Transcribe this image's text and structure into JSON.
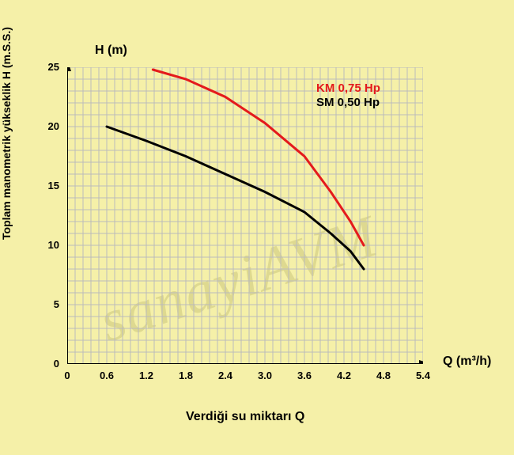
{
  "chart": {
    "type": "line",
    "background_color": "#f5f0a8",
    "grid_color": "#bbbbbb",
    "axis_color": "#000000",
    "y_axis": {
      "label": "H (m)",
      "title": "Toplam manometrik yükseklik H (m.S.S.)",
      "min": 0,
      "max": 25,
      "major_step": 5,
      "ticks": [
        "0",
        "5",
        "10",
        "15",
        "20",
        "25"
      ]
    },
    "x_axis": {
      "label": "Q (m³/h)",
      "title": "Verdiği su miktarı Q",
      "min": 0,
      "max": 5.4,
      "major_step": 0.6,
      "ticks": [
        "0",
        "0.6",
        "1.2",
        "1.8",
        "2.4",
        "3.0",
        "3.6",
        "4.2",
        "4.8",
        "5.4"
      ]
    },
    "n_minor_x": 45,
    "n_minor_y": 25,
    "series": [
      {
        "id": "km",
        "label": "KM 0,75 Hp",
        "color": "#e41a1c",
        "line_width": 3,
        "points": [
          [
            1.3,
            24.8
          ],
          [
            1.8,
            24.0
          ],
          [
            2.4,
            22.5
          ],
          [
            3.0,
            20.3
          ],
          [
            3.6,
            17.5
          ],
          [
            4.0,
            14.5
          ],
          [
            4.3,
            12.0
          ],
          [
            4.5,
            10.0
          ]
        ]
      },
      {
        "id": "sm",
        "label": "SM 0,50 Hp",
        "color": "#000000",
        "line_width": 3,
        "points": [
          [
            0.6,
            20.0
          ],
          [
            1.2,
            18.8
          ],
          [
            1.8,
            17.5
          ],
          [
            2.4,
            16.0
          ],
          [
            3.0,
            14.5
          ],
          [
            3.6,
            12.8
          ],
          [
            4.0,
            11.0
          ],
          [
            4.3,
            9.5
          ],
          [
            4.5,
            8.0
          ]
        ]
      }
    ],
    "watermark": "sanayiAVM"
  }
}
